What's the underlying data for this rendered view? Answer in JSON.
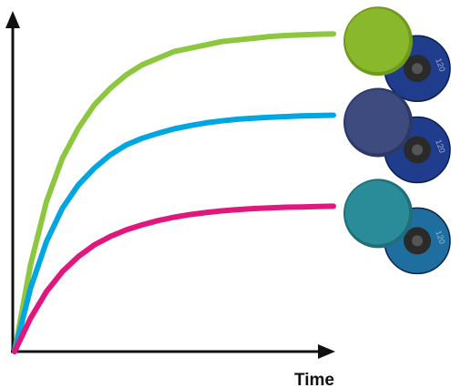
{
  "chart_data": {
    "type": "line",
    "title": "",
    "xlabel": "Time",
    "ylabel": "",
    "grid": false,
    "legend": "none",
    "xlim": [
      0,
      1
    ],
    "ylim": [
      0,
      1
    ],
    "x": [
      0,
      0.05,
      0.1,
      0.15,
      0.2,
      0.25,
      0.3,
      0.35,
      0.4,
      0.45,
      0.5,
      0.55,
      0.6,
      0.65,
      0.7,
      0.75,
      0.8,
      0.85,
      0.9,
      0.95,
      1.0
    ],
    "series": [
      {
        "color": "#8dc63f",
        "values": [
          0,
          0.26,
          0.45,
          0.58,
          0.67,
          0.74,
          0.79,
          0.83,
          0.86,
          0.88,
          0.9,
          0.91,
          0.92,
          0.93,
          0.935,
          0.94,
          0.945,
          0.948,
          0.95,
          0.952,
          0.953
        ]
      },
      {
        "color": "#00a6e2",
        "values": [
          0,
          0.19,
          0.33,
          0.43,
          0.5,
          0.55,
          0.59,
          0.62,
          0.64,
          0.655,
          0.668,
          0.678,
          0.686,
          0.692,
          0.697,
          0.7,
          0.703,
          0.705,
          0.707,
          0.708,
          0.709
        ]
      },
      {
        "color": "#e0177d",
        "values": [
          0,
          0.1,
          0.18,
          0.24,
          0.285,
          0.32,
          0.345,
          0.365,
          0.38,
          0.393,
          0.403,
          0.411,
          0.417,
          0.422,
          0.426,
          0.429,
          0.431,
          0.433,
          0.434,
          0.435,
          0.436
        ]
      }
    ]
  },
  "discs": [
    {
      "face": "#8ab82c",
      "face_dark": "#6f9a1c",
      "back": "#1f3d8c",
      "back_text": "120"
    },
    {
      "face": "#3d4b7e",
      "face_dark": "#2c3865",
      "back": "#1f3d8c",
      "back_text": "120"
    },
    {
      "face": "#2a8c98",
      "face_dark": "#1f6f7a",
      "back": "#1e6fa0",
      "back_text": "120"
    }
  ]
}
